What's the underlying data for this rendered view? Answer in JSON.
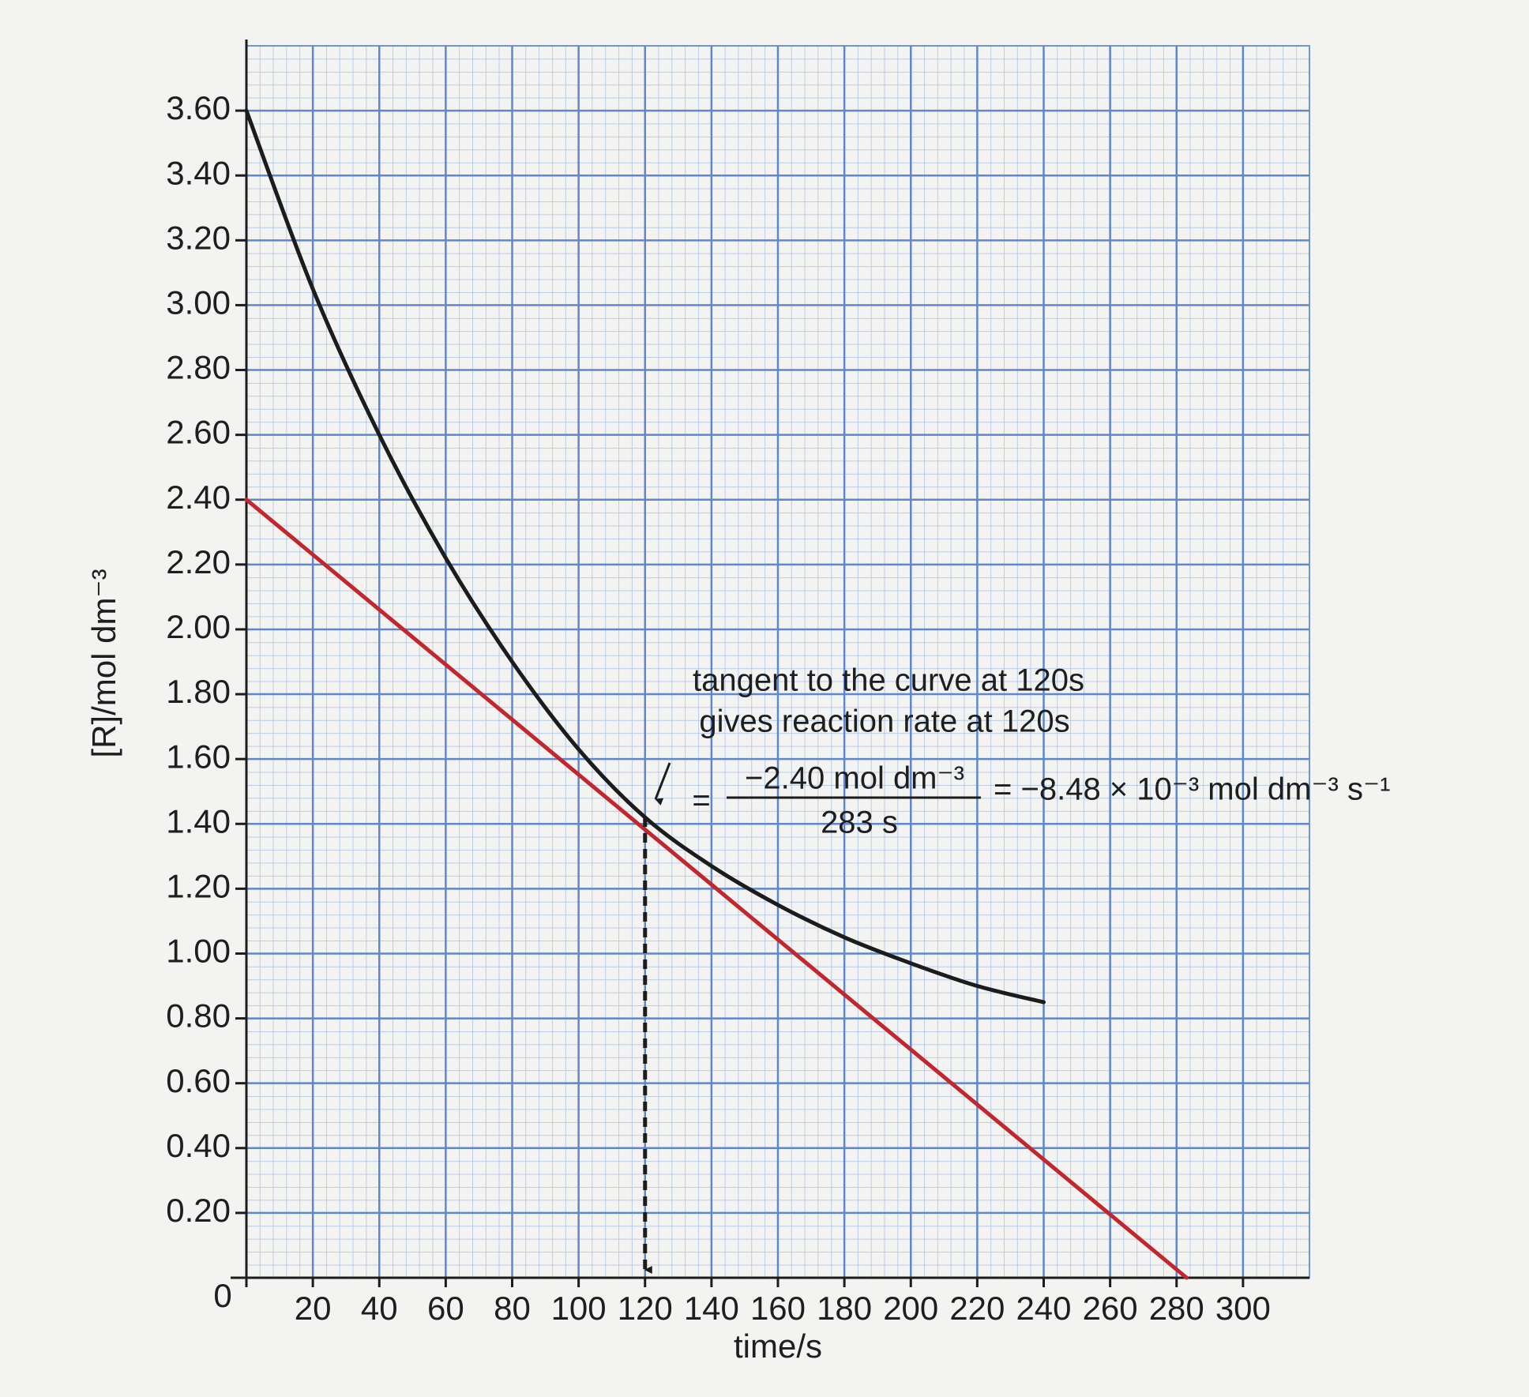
{
  "chart_data": {
    "type": "line",
    "x_label": "time/s",
    "y_label": "[R]/mol dm⁻³",
    "annotations": [
      "tangent to the curve at 120s",
      "gives reaction rate at 120s",
      "=",
      "−2.40 mol dm⁻³",
      "283 s",
      "= −8.48 × 10⁻³ mol dm⁻³ s⁻¹"
    ],
    "series": [
      {
        "color": "#1c1c1c",
        "x": [
          0,
          20,
          40,
          60,
          80,
          100,
          120,
          140,
          160,
          180,
          200,
          220,
          240
        ],
        "values": [
          3.6,
          3.05,
          2.6,
          2.22,
          1.9,
          1.63,
          1.42,
          1.27,
          1.15,
          1.05,
          0.97,
          0.9,
          0.85
        ]
      },
      {
        "color": "#c1272d",
        "x": [
          0,
          283
        ],
        "values": [
          2.4,
          0
        ]
      }
    ],
    "xlim": [
      0,
      320
    ],
    "ylim": [
      0,
      3.8
    ],
    "xticks": [
      0,
      20,
      40,
      60,
      80,
      100,
      120,
      140,
      160,
      180,
      200,
      220,
      240,
      260,
      280,
      300
    ],
    "yticks": [
      {
        "value": 0.2,
        "label": "0.20"
      },
      {
        "value": 0.4,
        "label": "0.40"
      },
      {
        "value": 0.6,
        "label": "0.60"
      },
      {
        "value": 0.8,
        "label": "0.80"
      },
      {
        "value": 1.0,
        "label": "1.00"
      },
      {
        "value": 1.2,
        "label": "1.20"
      },
      {
        "value": 1.4,
        "label": "1.40"
      },
      {
        "value": 1.6,
        "label": "1.60"
      },
      {
        "value": 1.8,
        "label": "1.80"
      },
      {
        "value": 2.0,
        "label": "2.00"
      },
      {
        "value": 2.2,
        "label": "2.20"
      },
      {
        "value": 2.4,
        "label": "2.40"
      },
      {
        "value": 2.6,
        "label": "2.60"
      },
      {
        "value": 2.8,
        "label": "2.80"
      },
      {
        "value": 3.0,
        "label": "3.00"
      },
      {
        "value": 3.2,
        "label": "3.20"
      },
      {
        "value": 3.4,
        "label": "3.40"
      },
      {
        "value": 3.6,
        "label": "3.60"
      }
    ],
    "grid": true
  }
}
